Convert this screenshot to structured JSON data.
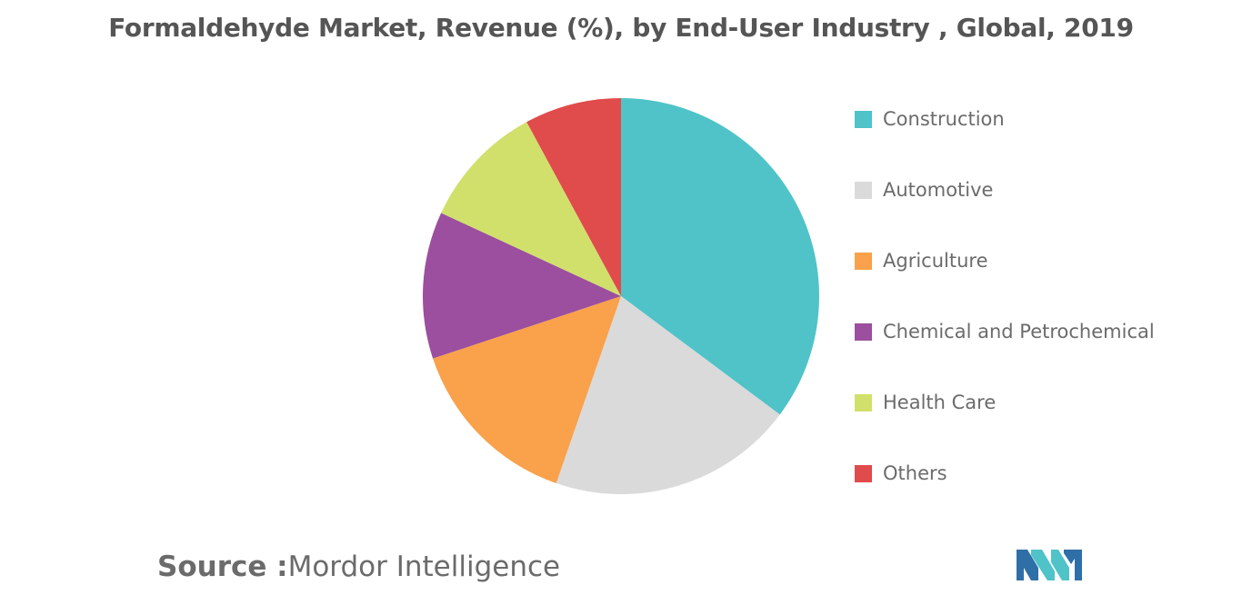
{
  "chart_data": {
    "type": "pie",
    "title": "Formaldehyde Market, Revenue (%), by End-User Industry , Global, 2019",
    "start_angle_deg": 0,
    "direction": "clockwise",
    "legend_placement": "right",
    "slices": [
      {
        "name": "Construction",
        "value": 35.2,
        "color": "#4FC3C8"
      },
      {
        "name": "Automotive",
        "value": 20.1,
        "color": "#DADADA"
      },
      {
        "name": "Agriculture",
        "value": 14.6,
        "color": "#F9A14B"
      },
      {
        "name": "Chemical and Petrochemical",
        "value": 12.0,
        "color": "#9B4F9E"
      },
      {
        "name": "Health Care",
        "value": 10.2,
        "color": "#D1E06B"
      },
      {
        "name": "Others",
        "value": 7.9,
        "color": "#E04B4B"
      }
    ]
  },
  "source": {
    "prefix": "Source :",
    "name": "Mordor Intelligence"
  },
  "logo": {
    "icon": "mordor-intelligence-logo",
    "colors": [
      "#2E6FA8",
      "#4FC3C8"
    ]
  }
}
